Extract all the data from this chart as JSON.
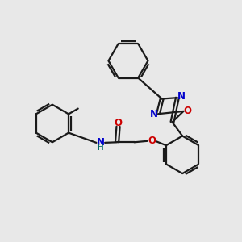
{
  "bg_color": "#e8e8e8",
  "bond_color": "#1a1a1a",
  "N_color": "#0000cc",
  "O_color": "#cc0000",
  "NH_color": "#006666",
  "H_color": "#006666",
  "font_size": 8.5,
  "lw": 1.6,
  "fig_width": 3.0,
  "fig_height": 3.0,
  "xlim": [
    0,
    10
  ],
  "ylim": [
    0,
    10
  ]
}
